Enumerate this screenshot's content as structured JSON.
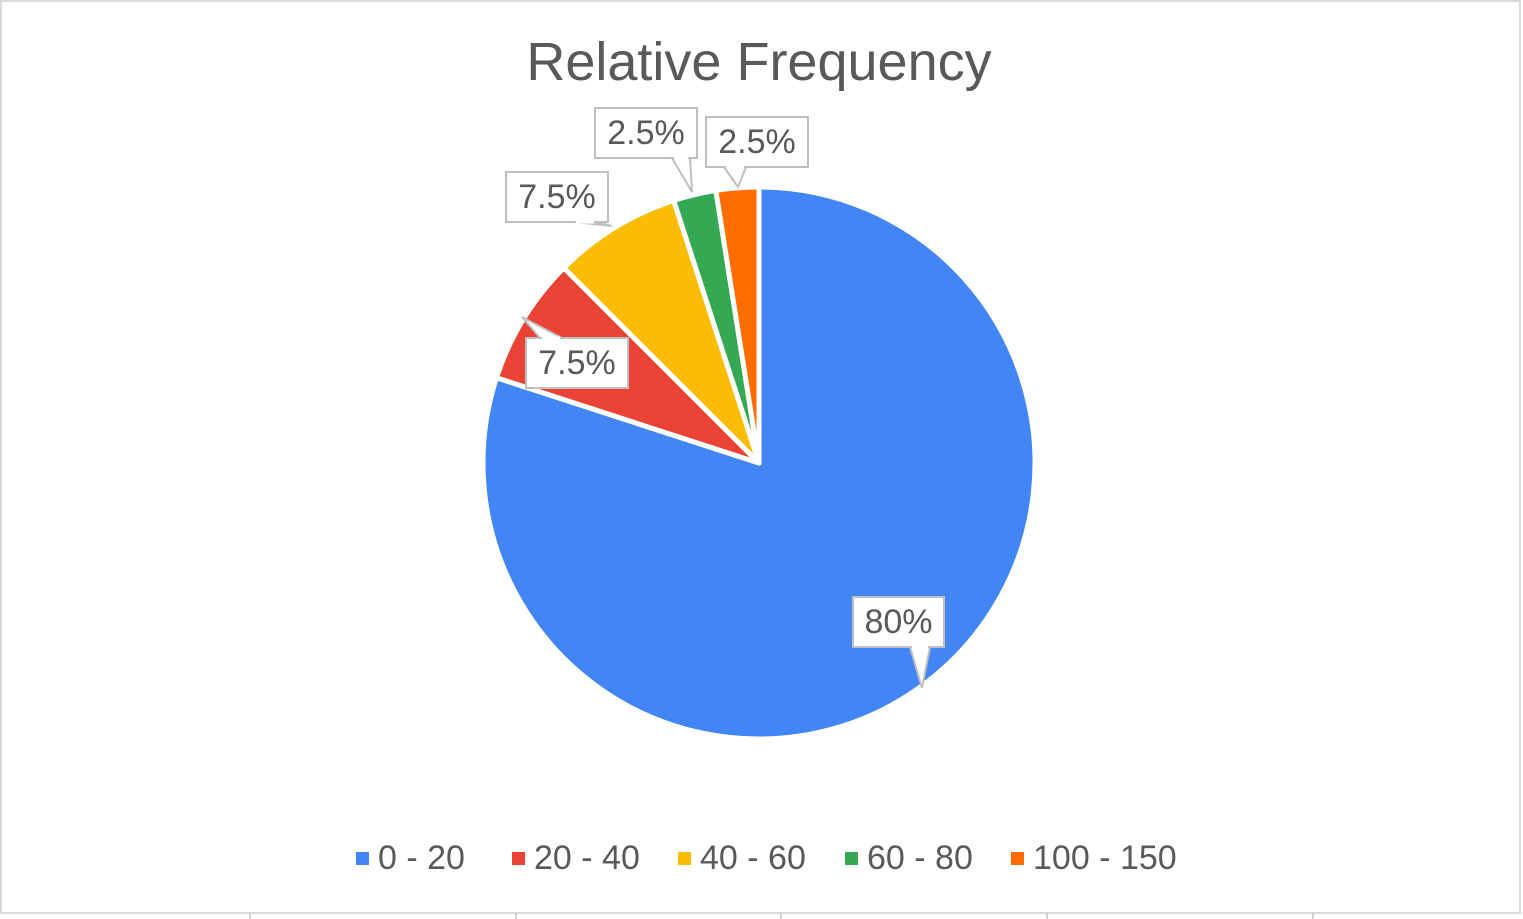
{
  "chart_data": {
    "type": "pie",
    "title": "Relative Frequency",
    "categories": [
      "0 - 20",
      "20 - 40",
      "40 - 60",
      "60 - 80",
      "100 - 150"
    ],
    "values": [
      80,
      7.5,
      7.5,
      2.5,
      2.5
    ],
    "data_labels": [
      "80%",
      "7.5%",
      "7.5%",
      "2.5%",
      "2.5%"
    ],
    "colors": [
      "#4285F4",
      "#EA4335",
      "#FBBC04",
      "#34A853",
      "#FF6D01"
    ],
    "start_angle_deg": 0,
    "direction": "clockwise",
    "legend_position": "bottom",
    "label_style": "callout"
  }
}
